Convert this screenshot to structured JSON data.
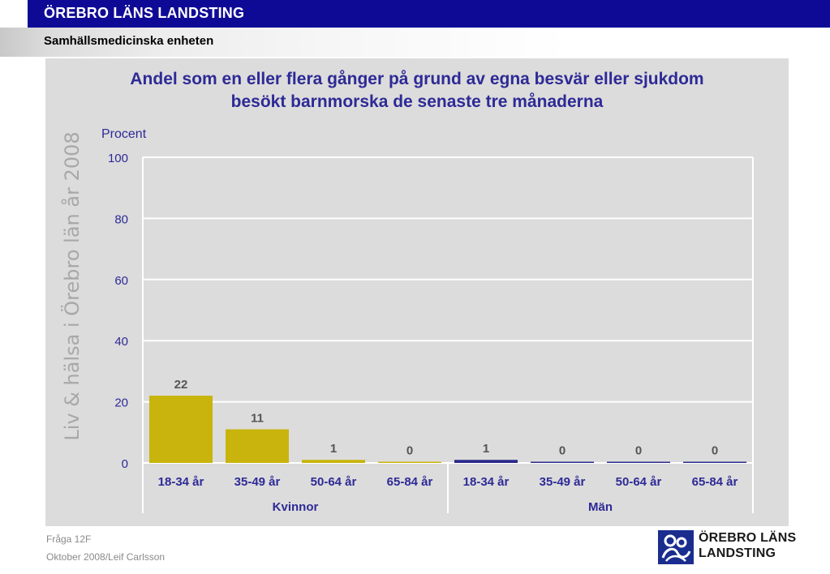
{
  "header": {
    "org": "ÖREBRO LÄNS LANDSTING",
    "unit": "Samhällsmedicinska enheten"
  },
  "side_text": "Liv & hälsa i Örebro län år 2008",
  "chart_data": {
    "type": "bar",
    "title_lines": [
      "Andel som en eller flera gånger på grund av egna besvär eller sjukdom",
      "besökt barnmorska de senaste tre månaderna"
    ],
    "ylabel": "Procent",
    "ylim": [
      0,
      100
    ],
    "yticks": [
      0,
      20,
      40,
      60,
      80,
      100
    ],
    "grid": true,
    "groups": [
      {
        "name": "Kvinnor",
        "color": "#c8b40c",
        "categories": [
          "18-34 år",
          "35-49 år",
          "50-64 år",
          "65-84 år"
        ],
        "values": [
          22,
          11,
          1,
          0
        ]
      },
      {
        "name": "Män",
        "color": "#2a2a8a",
        "categories": [
          "18-34 år",
          "35-49 år",
          "50-64 år",
          "65-84 år"
        ],
        "values": [
          1,
          0,
          0,
          0
        ]
      }
    ]
  },
  "footer": {
    "question": "Fråga 12F",
    "date_author": "Oktober 2008/Leif Carlsson"
  },
  "logo": {
    "line1": "ÖREBRO LÄNS",
    "line2": "LANDSTING",
    "icon": "landsting-logo-icon"
  }
}
